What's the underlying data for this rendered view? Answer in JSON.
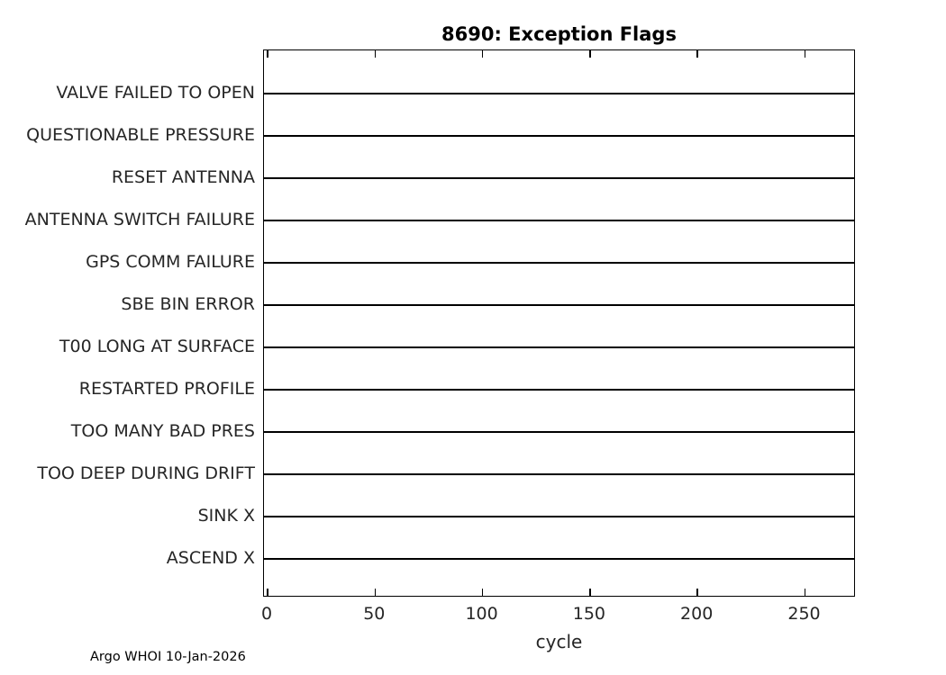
{
  "title": "8690: Exception Flags",
  "footer": "Argo WHOI 10-Jan-2026",
  "chart_data": {
    "type": "scatter",
    "title": "8690: Exception Flags",
    "xlabel": "cycle",
    "ylabel": "",
    "categories": [
      "VALVE FAILED TO OPEN",
      "QUESTIONABLE PRESSURE",
      "RESET ANTENNA",
      "ANTENNA SWITCH FAILURE",
      "GPS COMM FAILURE",
      "SBE BIN ERROR",
      "T00 LONG AT SURFACE",
      "RESTARTED PROFILE",
      "TOO MANY BAD PRES",
      "TOO DEEP DURING DRIFT",
      "SINK X",
      "ASCEND X"
    ],
    "series": [],
    "points": [],
    "xticks": [
      0,
      50,
      100,
      150,
      200,
      250
    ],
    "xlim": [
      0,
      275
    ],
    "grid": "horizontal-category-lines",
    "legend": "none",
    "note": "Empty exception-flag timeline: one horizontal track line per flag category, no event markers plotted.",
    "colors": {
      "line": "#000000",
      "text": "#262626",
      "title": "#000000",
      "background": "#ffffff"
    }
  }
}
